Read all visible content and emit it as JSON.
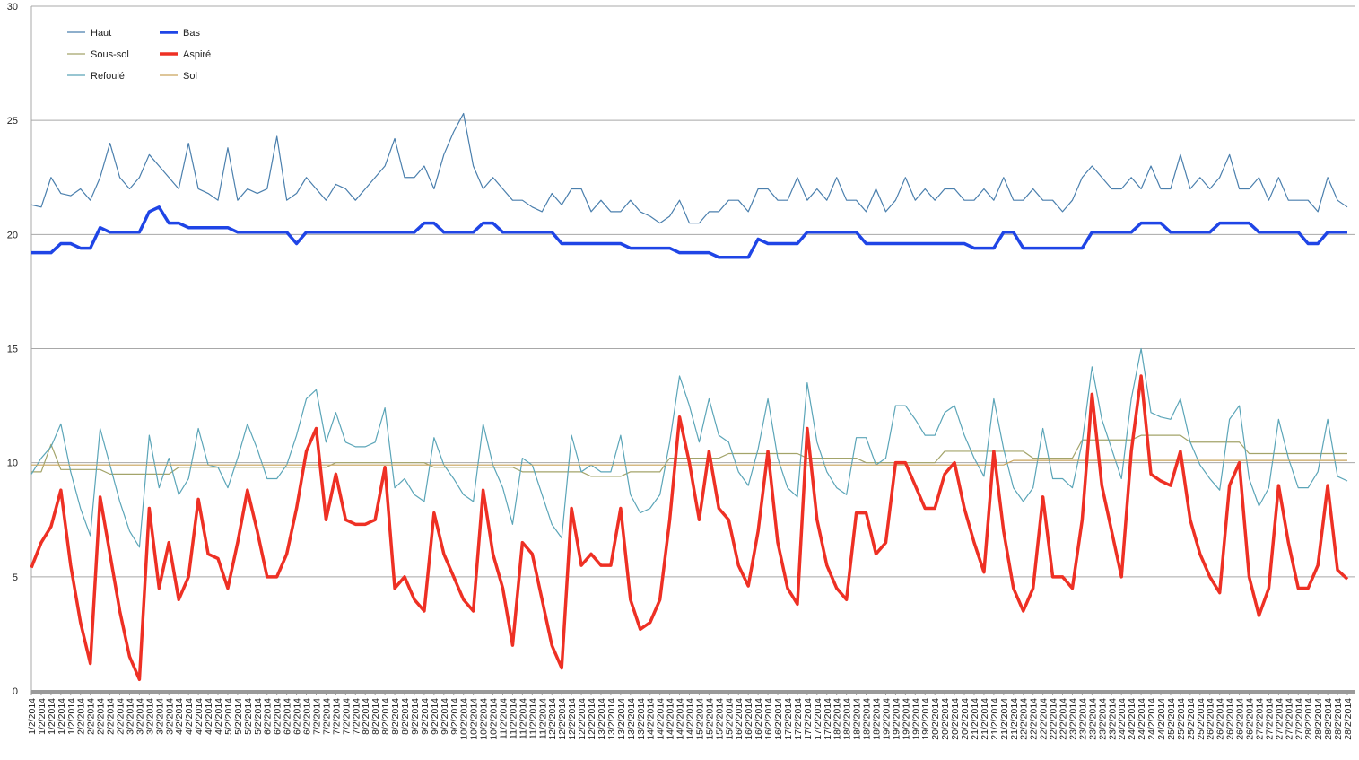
{
  "chart_data": {
    "type": "line",
    "categories": [
      "1/2/2014",
      "1/2/2014",
      "1/2/2014",
      "1/2/2014",
      "1/2/2014",
      "2/2/2014",
      "2/2/2014",
      "2/2/2014",
      "2/2/2014",
      "2/2/2014",
      "3/2/2014",
      "3/2/2014",
      "3/2/2014",
      "3/2/2014",
      "3/2/2014",
      "4/2/2014",
      "4/2/2014",
      "4/2/2014",
      "4/2/2014",
      "4/2/2014",
      "5/2/2014",
      "5/2/2014",
      "5/2/2014",
      "5/2/2014",
      "6/2/2014",
      "6/2/2014",
      "6/2/2014",
      "6/2/2014",
      "6/2/2014",
      "7/2/2014",
      "7/2/2014",
      "7/2/2014",
      "7/2/2014",
      "7/2/2014",
      "8/2/2014",
      "8/2/2014",
      "8/2/2014",
      "8/2/2014",
      "8/2/2014",
      "9/2/2014",
      "9/2/2014",
      "9/2/2014",
      "9/2/2014",
      "9/2/2014",
      "10/2/2014",
      "10/2/2014",
      "10/2/2014",
      "10/2/2014",
      "11/2/2014",
      "11/2/2014",
      "11/2/2014",
      "11/2/2014",
      "11/2/2014",
      "12/2/2014",
      "12/2/2014",
      "12/2/2014",
      "12/2/2014",
      "12/2/2014",
      "13/2/2014",
      "13/2/2014",
      "13/2/2014",
      "13/2/2014",
      "13/2/2014",
      "14/2/2014",
      "14/2/2014",
      "14/2/2014",
      "14/2/2014",
      "14/2/2014",
      "15/2/2014",
      "15/2/2014",
      "15/2/2014",
      "15/2/2014",
      "16/2/2014",
      "16/2/2014",
      "16/2/2014",
      "16/2/2014",
      "16/2/2014",
      "17/2/2014",
      "17/2/2014",
      "17/2/2014",
      "17/2/2014",
      "17/2/2014",
      "18/2/2014",
      "18/2/2014",
      "18/2/2014",
      "18/2/2014",
      "18/2/2014",
      "19/2/2014",
      "19/2/2014",
      "19/2/2014",
      "19/2/2014",
      "19/2/2014",
      "20/2/2014",
      "20/2/2014",
      "20/2/2014",
      "20/2/2014",
      "21/2/2014",
      "21/2/2014",
      "21/2/2014",
      "21/2/2014",
      "21/2/2014",
      "22/2/2014",
      "22/2/2014",
      "22/2/2014",
      "22/2/2014",
      "22/2/2014",
      "23/2/2014",
      "23/2/2014",
      "23/2/2014",
      "23/2/2014",
      "23/2/2014",
      "24/2/2014",
      "24/2/2014",
      "24/2/2014",
      "24/2/2014",
      "24/2/2014",
      "25/2/2014",
      "25/2/2014",
      "25/2/2014",
      "25/2/2014",
      "26/2/2014",
      "26/2/2014",
      "26/2/2014",
      "26/2/2014",
      "26/2/2014",
      "27/2/2014",
      "27/2/2014",
      "27/2/2014",
      "27/2/2014",
      "27/2/2014",
      "28/2/2014",
      "28/2/2014",
      "28/2/2014",
      "28/2/2014",
      "28/2/2014"
    ],
    "series": [
      {
        "name": "Haut",
        "color": "#4a7fad",
        "line_width": 1.2,
        "values": [
          21.3,
          21.2,
          22.5,
          21.8,
          21.7,
          22.0,
          21.5,
          22.5,
          24.0,
          22.5,
          22.0,
          22.5,
          23.5,
          23.0,
          22.5,
          22.0,
          24.0,
          22.0,
          21.8,
          21.5,
          23.8,
          21.5,
          22.0,
          21.8,
          22.0,
          24.3,
          21.5,
          21.8,
          22.5,
          22.0,
          21.5,
          22.2,
          22.0,
          21.5,
          22.0,
          22.5,
          23.0,
          24.2,
          22.5,
          22.5,
          23.0,
          22.0,
          23.5,
          24.5,
          25.3,
          23.0,
          22.0,
          22.5,
          22.0,
          21.5,
          21.5,
          21.2,
          21.0,
          21.8,
          21.3,
          22.0,
          22.0,
          21.0,
          21.5,
          21.0,
          21.0,
          21.5,
          21.0,
          20.8,
          20.5,
          20.8,
          21.5,
          20.5,
          20.5,
          21.0,
          21.0,
          21.5,
          21.5,
          21.0,
          22.0,
          22.0,
          21.5,
          21.5,
          22.5,
          21.5,
          22.0,
          21.5,
          22.5,
          21.5,
          21.5,
          21.0,
          22.0,
          21.0,
          21.5,
          22.5,
          21.5,
          22.0,
          21.5,
          22.0,
          22.0,
          21.5,
          21.5,
          22.0,
          21.5,
          22.5,
          21.5,
          21.5,
          22.0,
          21.5,
          21.5,
          21.0,
          21.5,
          22.5,
          23.0,
          22.5,
          22.0,
          22.0,
          22.5,
          22.0,
          23.0,
          22.0,
          22.0,
          23.5,
          22.0,
          22.5,
          22.0,
          22.5,
          23.5,
          22.0,
          22.0,
          22.5,
          21.5,
          22.5,
          21.5,
          21.5,
          21.5,
          21.0,
          22.5,
          21.5,
          21.2
        ]
      },
      {
        "name": "Sous-sol",
        "color": "#a3a46a",
        "line_width": 1.2,
        "values": [
          9.6,
          9.6,
          10.8,
          9.7,
          9.7,
          9.7,
          9.7,
          9.7,
          9.5,
          9.5,
          9.5,
          9.5,
          9.5,
          9.5,
          9.5,
          9.8,
          9.8,
          9.8,
          9.8,
          9.8,
          9.8,
          9.8,
          9.8,
          9.8,
          9.8,
          9.8,
          9.8,
          9.8,
          9.8,
          9.8,
          9.8,
          10.0,
          10.0,
          10.0,
          10.0,
          10.0,
          10.0,
          10.0,
          10.0,
          10.0,
          10.0,
          9.8,
          9.8,
          9.8,
          9.8,
          9.8,
          9.8,
          9.8,
          9.8,
          9.8,
          9.6,
          9.6,
          9.6,
          9.6,
          9.6,
          9.6,
          9.6,
          9.4,
          9.4,
          9.4,
          9.4,
          9.6,
          9.6,
          9.6,
          9.6,
          10.2,
          10.2,
          10.2,
          10.2,
          10.2,
          10.2,
          10.4,
          10.4,
          10.4,
          10.4,
          10.4,
          10.4,
          10.4,
          10.4,
          10.2,
          10.2,
          10.2,
          10.2,
          10.2,
          10.2,
          10.0,
          10.0,
          10.0,
          10.0,
          10.0,
          10.0,
          10.0,
          10.0,
          10.5,
          10.5,
          10.5,
          10.5,
          10.5,
          10.5,
          10.5,
          10.5,
          10.5,
          10.2,
          10.2,
          10.2,
          10.2,
          10.2,
          11.0,
          11.0,
          11.0,
          11.0,
          11.0,
          11.0,
          11.2,
          11.2,
          11.2,
          11.2,
          11.2,
          10.9,
          10.9,
          10.9,
          10.9,
          10.9,
          10.9,
          10.4,
          10.4,
          10.4,
          10.4,
          10.4,
          10.4,
          10.4,
          10.4,
          10.4,
          10.4,
          10.4
        ]
      },
      {
        "name": "Refoulé",
        "color": "#5ba5b8",
        "line_width": 1.2,
        "values": [
          9.5,
          10.2,
          10.7,
          11.7,
          9.6,
          8.0,
          6.8,
          11.5,
          9.9,
          8.3,
          7.0,
          6.3,
          11.2,
          8.9,
          10.2,
          8.6,
          9.3,
          11.5,
          9.9,
          9.8,
          8.9,
          10.2,
          11.7,
          10.6,
          9.3,
          9.3,
          9.9,
          11.2,
          12.8,
          13.2,
          10.9,
          12.2,
          10.9,
          10.7,
          10.7,
          10.9,
          12.4,
          8.9,
          9.3,
          8.6,
          8.3,
          11.1,
          9.9,
          9.3,
          8.6,
          8.3,
          11.7,
          9.9,
          8.9,
          7.3,
          10.2,
          9.9,
          8.6,
          7.3,
          6.7,
          11.2,
          9.6,
          9.9,
          9.6,
          9.6,
          11.2,
          8.6,
          7.8,
          8.0,
          8.6,
          10.9,
          13.8,
          12.5,
          10.9,
          12.8,
          11.2,
          10.9,
          9.6,
          9.0,
          10.6,
          12.8,
          10.2,
          8.9,
          8.5,
          13.5,
          10.9,
          9.6,
          8.9,
          8.6,
          11.1,
          11.1,
          9.9,
          10.2,
          12.5,
          12.5,
          11.9,
          11.2,
          11.2,
          12.2,
          12.5,
          11.2,
          10.2,
          9.4,
          12.8,
          10.6,
          8.9,
          8.3,
          8.9,
          11.5,
          9.3,
          9.3,
          8.9,
          10.9,
          14.2,
          11.9,
          10.6,
          9.3,
          12.8,
          15.0,
          12.2,
          12.0,
          11.9,
          12.8,
          10.9,
          9.9,
          9.3,
          8.8,
          11.9,
          12.5,
          9.3,
          8.1,
          8.9,
          11.9,
          10.2,
          8.9,
          8.9,
          9.6,
          11.9,
          9.4,
          9.2
        ]
      },
      {
        "name": "Bas",
        "color": "#1f45e6",
        "line_width": 3.5,
        "values": [
          19.2,
          19.2,
          19.2,
          19.6,
          19.6,
          19.4,
          19.4,
          20.3,
          20.1,
          20.1,
          20.1,
          20.1,
          21.0,
          21.2,
          20.5,
          20.5,
          20.3,
          20.3,
          20.3,
          20.3,
          20.3,
          20.1,
          20.1,
          20.1,
          20.1,
          20.1,
          20.1,
          19.6,
          20.1,
          20.1,
          20.1,
          20.1,
          20.1,
          20.1,
          20.1,
          20.1,
          20.1,
          20.1,
          20.1,
          20.1,
          20.5,
          20.5,
          20.1,
          20.1,
          20.1,
          20.1,
          20.5,
          20.5,
          20.1,
          20.1,
          20.1,
          20.1,
          20.1,
          20.1,
          19.6,
          19.6,
          19.6,
          19.6,
          19.6,
          19.6,
          19.6,
          19.4,
          19.4,
          19.4,
          19.4,
          19.4,
          19.2,
          19.2,
          19.2,
          19.2,
          19.0,
          19.0,
          19.0,
          19.0,
          19.8,
          19.6,
          19.6,
          19.6,
          19.6,
          20.1,
          20.1,
          20.1,
          20.1,
          20.1,
          20.1,
          19.6,
          19.6,
          19.6,
          19.6,
          19.6,
          19.6,
          19.6,
          19.6,
          19.6,
          19.6,
          19.6,
          19.4,
          19.4,
          19.4,
          20.1,
          20.1,
          19.4,
          19.4,
          19.4,
          19.4,
          19.4,
          19.4,
          19.4,
          20.1,
          20.1,
          20.1,
          20.1,
          20.1,
          20.5,
          20.5,
          20.5,
          20.1,
          20.1,
          20.1,
          20.1,
          20.1,
          20.5,
          20.5,
          20.5,
          20.5,
          20.1,
          20.1,
          20.1,
          20.1,
          20.1,
          19.6,
          19.6,
          20.1,
          20.1,
          20.1
        ]
      },
      {
        "name": "Aspiré",
        "color": "#ee3024",
        "line_width": 3.5,
        "values": [
          5.4,
          6.5,
          7.2,
          8.8,
          5.5,
          3.0,
          1.2,
          8.5,
          6.0,
          3.5,
          1.5,
          0.5,
          8.0,
          4.5,
          6.5,
          4.0,
          5.0,
          8.4,
          6.0,
          5.8,
          4.5,
          6.5,
          8.8,
          7.0,
          5.0,
          5.0,
          6.0,
          8.0,
          10.5,
          11.5,
          7.5,
          9.5,
          7.5,
          7.3,
          7.3,
          7.5,
          9.8,
          4.5,
          5.0,
          4.0,
          3.5,
          7.8,
          6.0,
          5.0,
          4.0,
          3.5,
          8.8,
          6.0,
          4.5,
          2.0,
          6.5,
          6.0,
          4.0,
          2.0,
          1.0,
          8.0,
          5.5,
          6.0,
          5.5,
          5.5,
          8.0,
          4.0,
          2.7,
          3.0,
          4.0,
          7.5,
          12.0,
          10.0,
          7.5,
          10.5,
          8.0,
          7.5,
          5.5,
          4.6,
          7.0,
          10.5,
          6.5,
          4.5,
          3.8,
          11.5,
          7.5,
          5.5,
          4.5,
          4.0,
          7.8,
          7.8,
          6.0,
          6.5,
          10.0,
          10.0,
          9.0,
          8.0,
          8.0,
          9.5,
          10.0,
          8.0,
          6.5,
          5.2,
          10.5,
          7.0,
          4.5,
          3.5,
          4.5,
          8.5,
          5.0,
          5.0,
          4.5,
          7.5,
          13.0,
          9.0,
          7.0,
          5.0,
          10.5,
          13.8,
          9.5,
          9.2,
          9.0,
          10.5,
          7.5,
          6.0,
          5.0,
          4.3,
          9.0,
          10.0,
          5.0,
          3.3,
          4.5,
          9.0,
          6.5,
          4.5,
          4.5,
          5.5,
          9.0,
          5.3,
          4.9
        ]
      },
      {
        "name": "Sol",
        "color": "#c9a45c",
        "line_width": 1.2,
        "values": [
          9.9,
          9.9,
          9.9,
          9.9,
          9.9,
          9.9,
          9.9,
          9.9,
          9.9,
          9.9,
          9.9,
          9.9,
          9.9,
          9.9,
          9.9,
          9.9,
          9.9,
          9.9,
          9.9,
          9.9,
          9.9,
          9.9,
          9.9,
          9.9,
          9.9,
          9.9,
          9.9,
          9.9,
          9.9,
          9.9,
          9.9,
          9.9,
          9.9,
          9.9,
          9.9,
          9.9,
          9.9,
          9.9,
          9.9,
          9.9,
          9.9,
          9.9,
          9.9,
          9.9,
          9.9,
          9.9,
          9.9,
          9.9,
          9.9,
          9.9,
          9.9,
          9.9,
          9.9,
          9.9,
          9.9,
          9.9,
          9.9,
          9.9,
          9.9,
          9.9,
          9.9,
          9.9,
          9.9,
          9.9,
          9.9,
          9.9,
          9.9,
          9.9,
          9.9,
          9.9,
          9.9,
          9.9,
          9.9,
          9.9,
          9.9,
          9.9,
          9.9,
          9.9,
          9.9,
          9.9,
          9.9,
          9.9,
          9.9,
          9.9,
          9.9,
          9.9,
          9.9,
          9.9,
          9.9,
          9.9,
          9.9,
          9.9,
          9.9,
          9.9,
          9.9,
          9.9,
          9.9,
          9.9,
          9.9,
          9.9,
          10.1,
          10.1,
          10.1,
          10.1,
          10.1,
          10.1,
          10.1,
          10.1,
          10.1,
          10.1,
          10.1,
          10.1,
          10.1,
          10.1,
          10.1,
          10.1,
          10.1,
          10.1,
          10.1,
          10.1,
          10.1,
          10.1,
          10.1,
          10.1,
          10.1,
          10.1,
          10.1,
          10.1,
          10.1,
          10.1,
          10.1,
          10.1,
          10.1,
          10.1,
          10.1
        ]
      }
    ],
    "ylim": [
      0,
      30
    ],
    "yticks": [
      0,
      5,
      10,
      15,
      20,
      25,
      30
    ],
    "grid": true,
    "legend": "top-left"
  }
}
